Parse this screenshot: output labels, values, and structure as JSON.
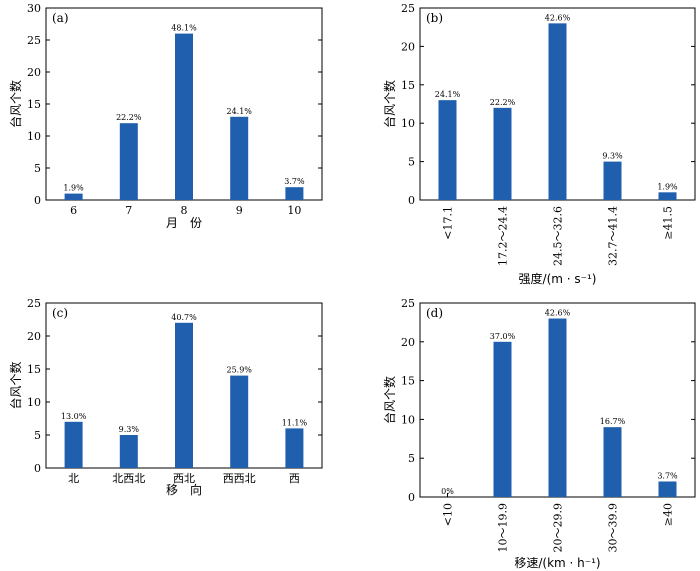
{
  "chart_data": [
    {
      "type": "bar",
      "panel_label": "(a)",
      "categories": [
        "6",
        "7",
        "8",
        "9",
        "10"
      ],
      "values": [
        1,
        12,
        26,
        13,
        2
      ],
      "data_labels": [
        "1.9%",
        "22.2%",
        "48.1%",
        "24.1%",
        "3.7%"
      ],
      "xlabel": "月　份",
      "ylabel": "台风个数",
      "ylim": [
        0,
        30
      ],
      "yticks": [
        "0",
        "5",
        "10",
        "15",
        "20",
        "25",
        "30"
      ],
      "rotate_x_labels": false,
      "bar_color": "#1f5fad"
    },
    {
      "type": "bar",
      "panel_label": "(b)",
      "categories": [
        "<17.1",
        "17.2～24.4",
        "24.5～32.6",
        "32.7～41.4",
        "≥41.5"
      ],
      "values": [
        13,
        12,
        23,
        5,
        1
      ],
      "data_labels": [
        "24.1%",
        "22.2%",
        "42.6%",
        "9.3%",
        "1.9%"
      ],
      "xlabel": "强度/(m · s⁻¹)",
      "ylabel": "台风个数",
      "ylim": [
        0,
        25
      ],
      "yticks": [
        "0",
        "5",
        "10",
        "15",
        "20",
        "25"
      ],
      "rotate_x_labels": true,
      "bar_color": "#1f5fad"
    },
    {
      "type": "bar",
      "panel_label": "(c)",
      "categories": [
        "北",
        "北西北",
        "西北",
        "西西北",
        "西"
      ],
      "values": [
        7,
        5,
        22,
        14,
        6
      ],
      "data_labels": [
        "13.0%",
        "9.3%",
        "40.7%",
        "25.9%",
        "11.1%"
      ],
      "xlabel": "移　向",
      "ylabel": "台风个数",
      "ylim": [
        0,
        25
      ],
      "yticks": [
        "0",
        "5",
        "10",
        "15",
        "20",
        "25"
      ],
      "rotate_x_labels": false,
      "bar_color": "#1f5fad"
    },
    {
      "type": "bar",
      "panel_label": "(d)",
      "categories": [
        "<10",
        "10～19.9",
        "20～29.9",
        "30～39.9",
        "≥40"
      ],
      "values": [
        0,
        20,
        23,
        9,
        2
      ],
      "data_labels": [
        "0%",
        "37.0%",
        "42.6%",
        "16.7%",
        "3.7%"
      ],
      "xlabel": "移速/(km · h⁻¹)",
      "ylabel": "台风个数",
      "ylim": [
        0,
        25
      ],
      "yticks": [
        "0",
        "5",
        "10",
        "15",
        "20",
        "25"
      ],
      "rotate_x_labels": true,
      "bar_color": "#1f5fad"
    }
  ]
}
